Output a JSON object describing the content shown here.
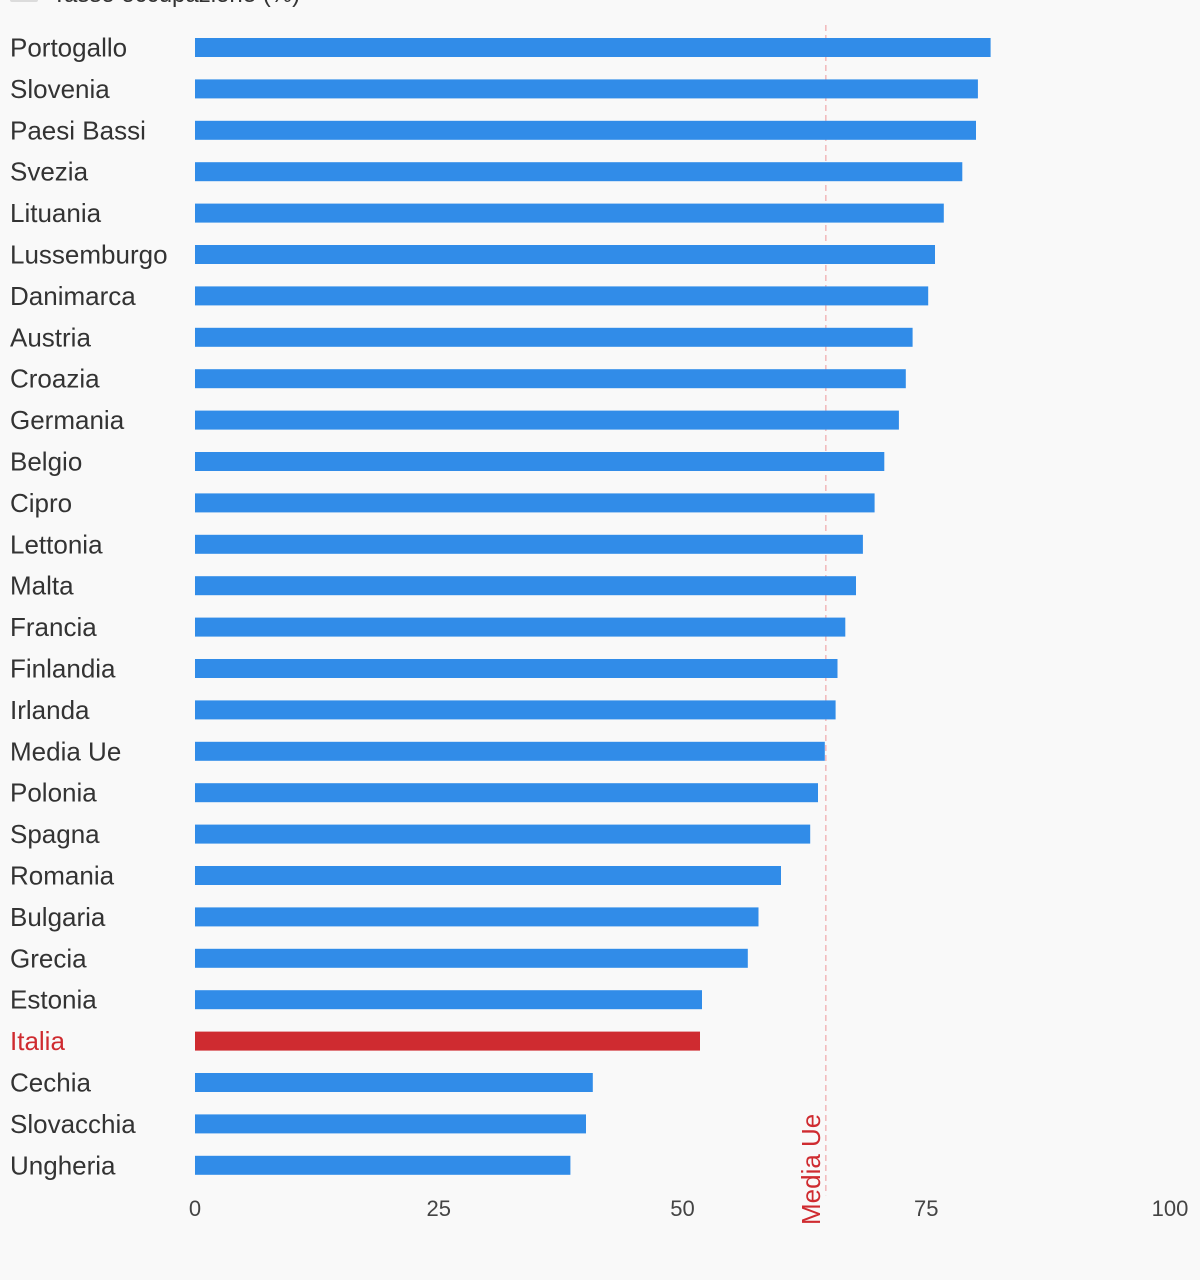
{
  "chart_data": {
    "type": "bar",
    "orientation": "horizontal",
    "legend": {
      "label": "Tasso occupazione (%)",
      "placement": "top-left",
      "color": "#dcdcdc"
    },
    "categories": [
      "Portogallo",
      "Slovenia",
      "Paesi Bassi",
      "Svezia",
      "Lituania",
      "Lussemburgo",
      "Danimarca",
      "Austria",
      "Croazia",
      "Germania",
      "Belgio",
      "Cipro",
      "Lettonia",
      "Malta",
      "Francia",
      "Finlandia",
      "Irlanda",
      "Media Ue",
      "Polonia",
      "Spagna",
      "Romania",
      "Bulgaria",
      "Grecia",
      "Estonia",
      "Italia",
      "Cechia",
      "Slovacchia",
      "Ungheria"
    ],
    "values": [
      81.6,
      80.3,
      80.1,
      78.7,
      76.8,
      75.9,
      75.2,
      73.6,
      72.9,
      72.2,
      70.7,
      69.7,
      68.5,
      67.8,
      66.7,
      65.9,
      65.7,
      64.6,
      63.9,
      63.1,
      60.1,
      57.8,
      56.7,
      52.0,
      51.8,
      40.8,
      40.1,
      38.5
    ],
    "highlight": "Italia",
    "xlim": [
      0,
      100
    ],
    "xticks": [
      "0",
      "25",
      "50",
      "75",
      "100"
    ],
    "grid": false,
    "reference_line": {
      "value": 64.7,
      "label": "Media Ue",
      "color": "#cf2b30"
    },
    "colors": {
      "bar": "#318ce8",
      "highlight": "#cf2b30",
      "label": "#333333",
      "highlight_label": "#cf2b30",
      "reference_line": "#f2b8ba",
      "background": "#f9f9f9"
    }
  }
}
